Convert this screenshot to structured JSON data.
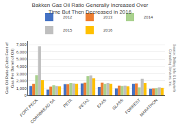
{
  "chart_data": {
    "type": "bar",
    "title": "Bakken Gas Oil Ratio Generally Increased Over Time But Then Decreased in 2016",
    "ylabel": "Gas Oil Ratio (Cubic Feet of Gas Per Barrel of Oil)",
    "annotations": [
      "Source: Drilling Info & Labyrinth Consulting Services, Inc."
    ],
    "categories": [
      "FORT PECK",
      "CORNBREAD SA",
      "PETA",
      "PETA2",
      "EAAS",
      "GLASS",
      "FORREST",
      "MARATHON"
    ],
    "series": [
      {
        "name": "2012",
        "color": "#4472C4",
        "values": [
          1300,
          800,
          1550,
          1650,
          1150,
          950,
          1600,
          900
        ]
      },
      {
        "name": "2013",
        "color": "#ED7D31",
        "values": [
          1600,
          1200,
          1550,
          1750,
          1750,
          1350,
          1650,
          950
        ]
      },
      {
        "name": "2014",
        "color": "#A9D18E",
        "values": [
          2800,
          1400,
          1700,
          2650,
          1600,
          1300,
          1100,
          1000
        ]
      },
      {
        "name": "2015",
        "color": "#BFBFBF",
        "values": [
          6800,
          1300,
          1650,
          2750,
          1700,
          1350,
          2300,
          1100
        ]
      },
      {
        "name": "2016",
        "color": "#FFC000",
        "values": [
          2100,
          1250,
          1600,
          2350,
          1600,
          1250,
          1700,
          1050
        ]
      }
    ],
    "ylim": [
      0,
      7500
    ],
    "yticks": [
      0,
      {
        "value": 1000,
        "label": "1,000"
      },
      {
        "value": 2000,
        "label": "2,000"
      },
      {
        "value": 3000,
        "label": "3,000"
      },
      {
        "value": 4000,
        "label": "4,000"
      },
      {
        "value": 5000,
        "label": "5,000"
      },
      {
        "value": 6000,
        "label": "6,000"
      },
      {
        "value": 7000,
        "label": "7,000"
      }
    ],
    "grid": true,
    "legend": "top"
  }
}
